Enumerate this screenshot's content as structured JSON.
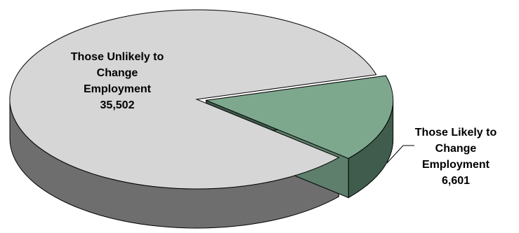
{
  "chart_data": {
    "type": "pie",
    "style": "3d-exploded",
    "slices": [
      {
        "label_lines": [
          "Those Unlikely to",
          "Change",
          "Employment"
        ],
        "value": 35502,
        "value_label": "35,502",
        "color": "#d6d6d6",
        "side_color": "#6e6e6e"
      },
      {
        "label_lines": [
          "Those Likely to",
          "Change",
          "Employment"
        ],
        "value": 6601,
        "value_label": "6,601",
        "color": "#7ea88e",
        "side_color": "#3f5c4c",
        "exploded": true
      }
    ],
    "legend": "none",
    "grid": false
  }
}
